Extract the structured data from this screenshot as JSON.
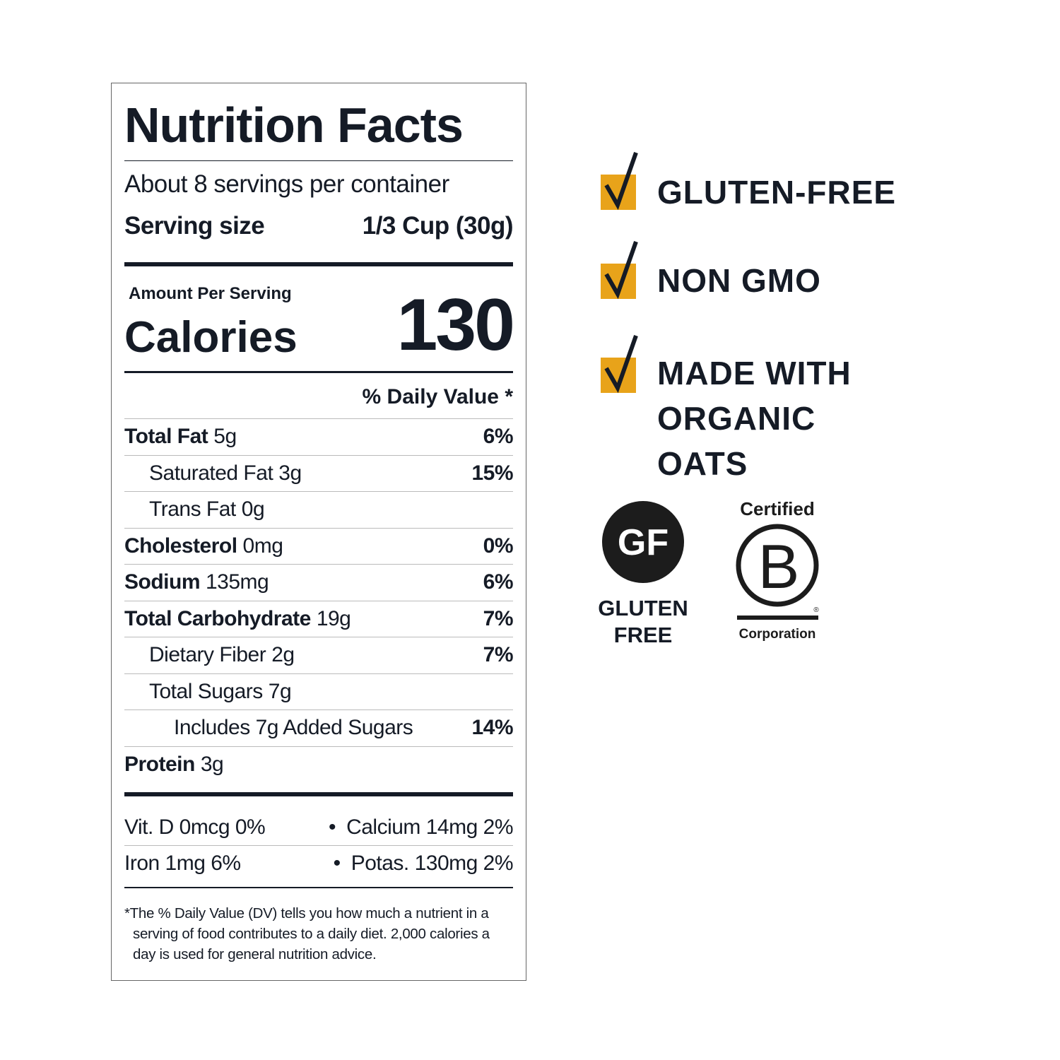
{
  "label": {
    "title": "Nutrition Facts",
    "servings": "About 8 servings per container",
    "serving_size_label": "Serving size",
    "serving_size": "1/3 Cup (30g)",
    "amount_per_serving": "Amount Per Serving",
    "calories_label": "Calories",
    "calories": 130,
    "dv_header": "% Daily Value *",
    "rows": [
      {
        "name": "Total Fat",
        "amount": "5g",
        "dv": "6%"
      },
      {
        "name": "Saturated Fat",
        "amount": "3g",
        "dv": "15%"
      },
      {
        "name": "Trans Fat",
        "amount": "0g"
      },
      {
        "name": "Cholesterol",
        "amount": "0mg",
        "dv": "0%"
      },
      {
        "name": "Sodium",
        "amount": "135mg",
        "dv": "6%"
      },
      {
        "name": "Total Carbohydrate",
        "amount": "19g",
        "dv": "7%"
      },
      {
        "name": "Dietary Fiber",
        "amount": "2g",
        "dv": "7%"
      },
      {
        "name": "Total Sugars",
        "amount": "7g"
      },
      {
        "name": "Includes 7g Added Sugars",
        "dv": "14%"
      },
      {
        "name": "Protein",
        "amount": "3g"
      }
    ],
    "vitamins": [
      [
        "Vit. D 0mcg 0%",
        "Calcium 14mg 2%"
      ],
      [
        "Iron 1mg 6%",
        "Potas. 130mg 2%"
      ]
    ],
    "separator": "•",
    "footnote": "*The % Daily Value (DV) tells you how much a nutrient in a serving of food contributes to a daily diet. 2,000 calories a day is used for general nutrition advice."
  },
  "claims": [
    "GLUTEN-FREE",
    "NON GMO",
    "MADE WITH ORGANIC OATS"
  ],
  "badges": {
    "gf_logo": "GF",
    "gf_caption": "GLUTEN FREE",
    "bcorp_top": "Certified",
    "bcorp_letter": "B",
    "bcorp_mark": "®",
    "bcorp_bottom": "Corporation"
  }
}
